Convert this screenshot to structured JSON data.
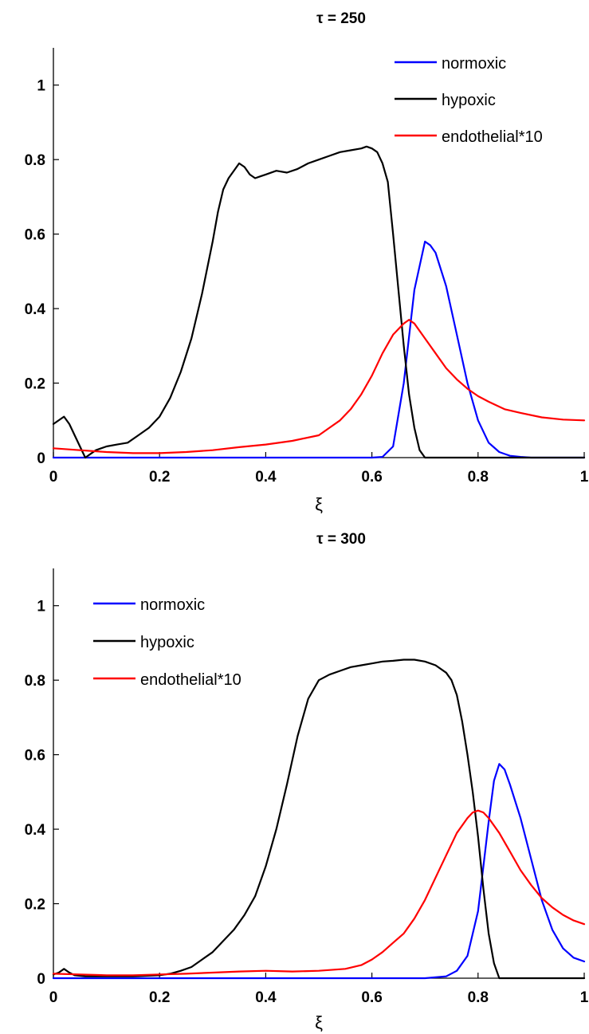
{
  "chart_data": [
    {
      "type": "line",
      "title": "τ = 250",
      "xlabel": "ξ",
      "ylabel": "",
      "xlim": [
        0,
        1
      ],
      "ylim": [
        0,
        1.1
      ],
      "xticks": [
        0,
        0.2,
        0.4,
        0.6,
        0.8,
        1
      ],
      "xtick_labels": [
        "0",
        "0.2",
        "0.4",
        "0.6",
        "0.8",
        "1"
      ],
      "yticks": [
        0,
        0.2,
        0.4,
        0.6,
        0.8,
        1
      ],
      "ytick_labels": [
        "0",
        "0.2",
        "0.4",
        "0.6",
        "0.8",
        "1"
      ],
      "legend_position": "top-right",
      "series": [
        {
          "name": "normoxic",
          "color": "#0000ff",
          "x": [
            0,
            0.6,
            0.62,
            0.64,
            0.66,
            0.68,
            0.7,
            0.71,
            0.72,
            0.74,
            0.76,
            0.78,
            0.8,
            0.82,
            0.84,
            0.86,
            0.88,
            0.9,
            0.95,
            1.0
          ],
          "y": [
            0,
            0,
            0.002,
            0.03,
            0.2,
            0.45,
            0.58,
            0.57,
            0.55,
            0.46,
            0.33,
            0.2,
            0.1,
            0.04,
            0.015,
            0.005,
            0.002,
            0,
            0,
            0
          ]
        },
        {
          "name": "hypoxic",
          "color": "#000000",
          "x": [
            0,
            0.02,
            0.03,
            0.05,
            0.06,
            0.08,
            0.1,
            0.12,
            0.14,
            0.16,
            0.18,
            0.2,
            0.22,
            0.24,
            0.26,
            0.28,
            0.3,
            0.31,
            0.32,
            0.33,
            0.35,
            0.36,
            0.37,
            0.38,
            0.39,
            0.4,
            0.42,
            0.44,
            0.46,
            0.48,
            0.5,
            0.52,
            0.54,
            0.56,
            0.58,
            0.59,
            0.6,
            0.61,
            0.62,
            0.63,
            0.64,
            0.65,
            0.66,
            0.67,
            0.68,
            0.69,
            0.7,
            0.75,
            0.8,
            1.0
          ],
          "y": [
            0.09,
            0.11,
            0.09,
            0.03,
            0.0,
            0.02,
            0.03,
            0.035,
            0.04,
            0.06,
            0.08,
            0.11,
            0.16,
            0.23,
            0.32,
            0.44,
            0.58,
            0.66,
            0.72,
            0.75,
            0.79,
            0.78,
            0.76,
            0.75,
            0.755,
            0.76,
            0.77,
            0.765,
            0.775,
            0.79,
            0.8,
            0.81,
            0.82,
            0.825,
            0.83,
            0.835,
            0.83,
            0.82,
            0.79,
            0.74,
            0.6,
            0.45,
            0.3,
            0.17,
            0.08,
            0.02,
            0.0,
            0.0,
            0.0,
            0.0
          ]
        },
        {
          "name": "endothelial*10",
          "color": "#ff0000",
          "x": [
            0,
            0.05,
            0.1,
            0.15,
            0.2,
            0.25,
            0.3,
            0.35,
            0.4,
            0.45,
            0.5,
            0.52,
            0.54,
            0.56,
            0.58,
            0.6,
            0.62,
            0.64,
            0.66,
            0.67,
            0.68,
            0.7,
            0.72,
            0.74,
            0.76,
            0.78,
            0.8,
            0.82,
            0.85,
            0.88,
            0.92,
            0.96,
            1.0
          ],
          "y": [
            0.025,
            0.02,
            0.015,
            0.012,
            0.012,
            0.015,
            0.02,
            0.028,
            0.035,
            0.045,
            0.06,
            0.08,
            0.1,
            0.13,
            0.17,
            0.22,
            0.28,
            0.33,
            0.36,
            0.37,
            0.36,
            0.32,
            0.28,
            0.24,
            0.21,
            0.185,
            0.165,
            0.15,
            0.13,
            0.12,
            0.108,
            0.102,
            0.1
          ]
        }
      ]
    },
    {
      "type": "line",
      "title": "τ = 300",
      "xlabel": "ξ",
      "ylabel": "",
      "xlim": [
        0,
        1
      ],
      "ylim": [
        0,
        1.1
      ],
      "xticks": [
        0,
        0.2,
        0.4,
        0.6,
        0.8,
        1
      ],
      "xtick_labels": [
        "0",
        "0.2",
        "0.4",
        "0.6",
        "0.8",
        "1"
      ],
      "yticks": [
        0,
        0.2,
        0.4,
        0.6,
        0.8,
        1
      ],
      "ytick_labels": [
        "0",
        "0.2",
        "0.4",
        "0.6",
        "0.8",
        "1"
      ],
      "legend_position": "top-left",
      "series": [
        {
          "name": "normoxic",
          "color": "#0000ff",
          "x": [
            0,
            0.7,
            0.74,
            0.76,
            0.78,
            0.8,
            0.81,
            0.82,
            0.83,
            0.84,
            0.85,
            0.86,
            0.88,
            0.9,
            0.92,
            0.94,
            0.96,
            0.98,
            1.0
          ],
          "y": [
            0,
            0,
            0.005,
            0.02,
            0.06,
            0.18,
            0.3,
            0.42,
            0.53,
            0.575,
            0.56,
            0.52,
            0.43,
            0.32,
            0.21,
            0.13,
            0.08,
            0.055,
            0.045
          ]
        },
        {
          "name": "hypoxic",
          "color": "#000000",
          "x": [
            0,
            0.01,
            0.02,
            0.03,
            0.04,
            0.06,
            0.1,
            0.15,
            0.2,
            0.22,
            0.24,
            0.26,
            0.28,
            0.3,
            0.32,
            0.34,
            0.36,
            0.38,
            0.4,
            0.42,
            0.44,
            0.46,
            0.48,
            0.5,
            0.52,
            0.54,
            0.56,
            0.58,
            0.6,
            0.62,
            0.64,
            0.66,
            0.68,
            0.7,
            0.72,
            0.74,
            0.75,
            0.76,
            0.77,
            0.78,
            0.79,
            0.8,
            0.81,
            0.82,
            0.83,
            0.84,
            0.9,
            1.0
          ],
          "y": [
            0.01,
            0.015,
            0.025,
            0.015,
            0.008,
            0.005,
            0.005,
            0.005,
            0.008,
            0.012,
            0.02,
            0.03,
            0.05,
            0.07,
            0.1,
            0.13,
            0.17,
            0.22,
            0.3,
            0.4,
            0.52,
            0.65,
            0.75,
            0.8,
            0.815,
            0.825,
            0.835,
            0.84,
            0.845,
            0.85,
            0.852,
            0.855,
            0.855,
            0.85,
            0.84,
            0.82,
            0.8,
            0.76,
            0.69,
            0.6,
            0.5,
            0.38,
            0.24,
            0.12,
            0.04,
            0.0,
            0.0,
            0.0
          ]
        },
        {
          "name": "endothelial*10",
          "color": "#ff0000",
          "x": [
            0,
            0.05,
            0.1,
            0.15,
            0.2,
            0.25,
            0.3,
            0.35,
            0.4,
            0.45,
            0.5,
            0.55,
            0.58,
            0.6,
            0.62,
            0.64,
            0.66,
            0.68,
            0.7,
            0.72,
            0.74,
            0.76,
            0.78,
            0.79,
            0.8,
            0.81,
            0.82,
            0.84,
            0.86,
            0.88,
            0.9,
            0.92,
            0.94,
            0.96,
            0.98,
            1.0
          ],
          "y": [
            0.012,
            0.01,
            0.008,
            0.008,
            0.01,
            0.012,
            0.015,
            0.018,
            0.02,
            0.018,
            0.02,
            0.025,
            0.035,
            0.05,
            0.07,
            0.095,
            0.12,
            0.16,
            0.21,
            0.27,
            0.33,
            0.39,
            0.43,
            0.445,
            0.45,
            0.445,
            0.43,
            0.39,
            0.34,
            0.29,
            0.25,
            0.215,
            0.19,
            0.17,
            0.155,
            0.145
          ]
        }
      ]
    }
  ]
}
